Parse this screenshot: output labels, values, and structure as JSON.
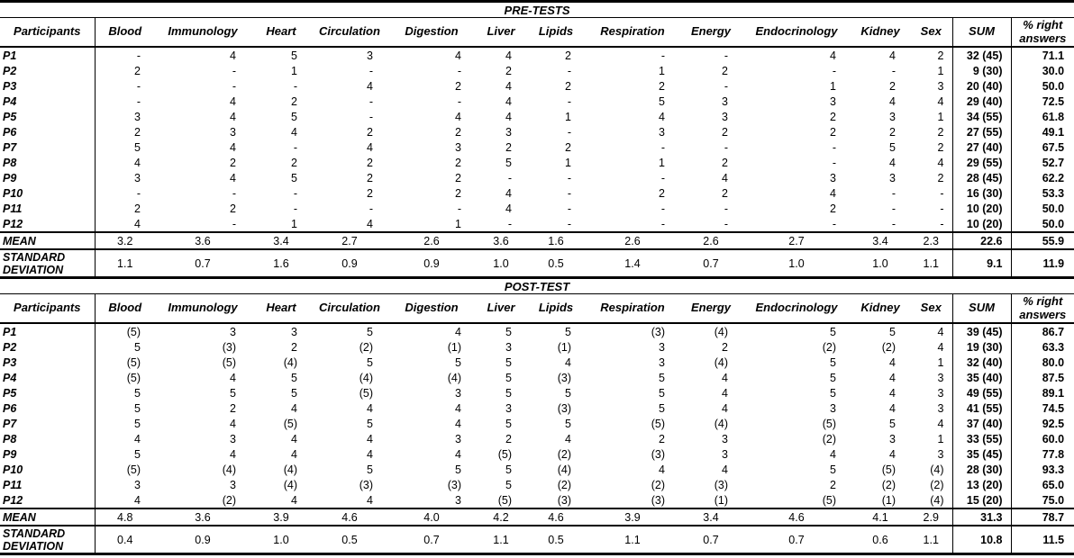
{
  "columns": [
    "Participants",
    "Blood",
    "Immunology",
    "Heart",
    "Circulation",
    "Digestion",
    "Liver",
    "Lipids",
    "Respiration",
    "Energy",
    "Endocrinology",
    "Kidney",
    "Sex",
    "SUM",
    "% right answers"
  ],
  "tables": [
    {
      "title": "PRE-TESTS",
      "rows": [
        {
          "label": "P1",
          "scores": [
            "-",
            "4",
            "5",
            "3",
            "4",
            "4",
            "2",
            "-",
            "-",
            "4",
            "4",
            "2"
          ],
          "sum": "32 (45)",
          "percent": "71.1"
        },
        {
          "label": "P2",
          "scores": [
            "2",
            "-",
            "1",
            "-",
            "-",
            "2",
            "-",
            "1",
            "2",
            "-",
            "-",
            "1"
          ],
          "sum": "9 (30)",
          "percent": "30.0"
        },
        {
          "label": "P3",
          "scores": [
            "-",
            "-",
            "-",
            "4",
            "2",
            "4",
            "2",
            "2",
            "-",
            "1",
            "2",
            "3"
          ],
          "sum": "20 (40)",
          "percent": "50.0"
        },
        {
          "label": "P4",
          "scores": [
            "-",
            "4",
            "2",
            "-",
            "-",
            "4",
            "-",
            "5",
            "3",
            "3",
            "4",
            "4"
          ],
          "sum": "29 (40)",
          "percent": "72.5"
        },
        {
          "label": "P5",
          "scores": [
            "3",
            "4",
            "5",
            "-",
            "4",
            "4",
            "1",
            "4",
            "3",
            "2",
            "3",
            "1"
          ],
          "sum": "34 (55)",
          "percent": "61.8"
        },
        {
          "label": "P6",
          "scores": [
            "2",
            "3",
            "4",
            "2",
            "2",
            "3",
            "-",
            "3",
            "2",
            "2",
            "2",
            "2"
          ],
          "sum": "27 (55)",
          "percent": "49.1"
        },
        {
          "label": "P7",
          "scores": [
            "5",
            "4",
            "-",
            "4",
            "3",
            "2",
            "2",
            "-",
            "-",
            "-",
            "5",
            "2"
          ],
          "sum": "27 (40)",
          "percent": "67.5"
        },
        {
          "label": "P8",
          "scores": [
            "4",
            "2",
            "2",
            "2",
            "2",
            "5",
            "1",
            "1",
            "2",
            "-",
            "4",
            "4"
          ],
          "sum": "29 (55)",
          "percent": "52.7"
        },
        {
          "label": "P9",
          "scores": [
            "3",
            "4",
            "5",
            "2",
            "2",
            "-",
            "-",
            "-",
            "4",
            "3",
            "3",
            "2"
          ],
          "sum": "28 (45)",
          "percent": "62.2"
        },
        {
          "label": "P10",
          "scores": [
            "-",
            "-",
            "-",
            "2",
            "2",
            "4",
            "-",
            "2",
            "2",
            "4",
            "-",
            "-"
          ],
          "sum": "16 (30)",
          "percent": "53.3"
        },
        {
          "label": "P11",
          "scores": [
            "2",
            "2",
            "-",
            "-",
            "-",
            "4",
            "-",
            "-",
            "-",
            "2",
            "-",
            "-"
          ],
          "sum": "10 (20)",
          "percent": "50.0"
        },
        {
          "label": "P12",
          "scores": [
            "4",
            "-",
            "1",
            "4",
            "1",
            "-",
            "-",
            "-",
            "-",
            "-",
            "-",
            "-"
          ],
          "sum": "10 (20)",
          "percent": "50.0"
        }
      ],
      "mean": {
        "label": "MEAN",
        "scores": [
          "3.2",
          "3.6",
          "3.4",
          "2.7",
          "2.6",
          "3.6",
          "1.6",
          "2.6",
          "2.6",
          "2.7",
          "3.4",
          "2.3"
        ],
        "sum": "22.6",
        "percent": "55.9"
      },
      "sd": {
        "label": "STANDARD DEVIATION",
        "scores": [
          "1.1",
          "0.7",
          "1.6",
          "0.9",
          "0.9",
          "1.0",
          "0.5",
          "1.4",
          "0.7",
          "1.0",
          "1.0",
          "1.1"
        ],
        "sum": "9.1",
        "percent": "11.9"
      }
    },
    {
      "title": "POST-TEST",
      "rows": [
        {
          "label": "P1",
          "scores": [
            "(5)",
            "3",
            "3",
            "5",
            "4",
            "5",
            "5",
            "(3)",
            "(4)",
            "5",
            "5",
            "4"
          ],
          "sum": "39 (45)",
          "percent": "86.7"
        },
        {
          "label": "P2",
          "scores": [
            "5",
            "(3)",
            "2",
            "(2)",
            "(1)",
            "3",
            "(1)",
            "3",
            "2",
            "(2)",
            "(2)",
            "4"
          ],
          "sum": "19 (30)",
          "percent": "63.3"
        },
        {
          "label": "P3",
          "scores": [
            "(5)",
            "(5)",
            "(4)",
            "5",
            "5",
            "5",
            "4",
            "3",
            "(4)",
            "5",
            "4",
            "1"
          ],
          "sum": "32 (40)",
          "percent": "80.0"
        },
        {
          "label": "P4",
          "scores": [
            "(5)",
            "4",
            "5",
            "(4)",
            "(4)",
            "5",
            "(3)",
            "5",
            "4",
            "5",
            "4",
            "3"
          ],
          "sum": "35 (40)",
          "percent": "87.5"
        },
        {
          "label": "P5",
          "scores": [
            "5",
            "5",
            "5",
            "(5)",
            "3",
            "5",
            "5",
            "5",
            "4",
            "5",
            "4",
            "3"
          ],
          "sum": "49 (55)",
          "percent": "89.1"
        },
        {
          "label": "P6",
          "scores": [
            "5",
            "2",
            "4",
            "4",
            "4",
            "3",
            "(3)",
            "5",
            "4",
            "3",
            "4",
            "3"
          ],
          "sum": "41 (55)",
          "percent": "74.5"
        },
        {
          "label": "P7",
          "scores": [
            "5",
            "4",
            "(5)",
            "5",
            "4",
            "5",
            "5",
            "(5)",
            "(4)",
            "(5)",
            "5",
            "4"
          ],
          "sum": "37 (40)",
          "percent": "92.5"
        },
        {
          "label": "P8",
          "scores": [
            "4",
            "3",
            "4",
            "4",
            "3",
            "2",
            "4",
            "2",
            "3",
            "(2)",
            "3",
            "1"
          ],
          "sum": "33 (55)",
          "percent": "60.0"
        },
        {
          "label": "P9",
          "scores": [
            "5",
            "4",
            "4",
            "4",
            "4",
            "(5)",
            "(2)",
            "(3)",
            "3",
            "4",
            "4",
            "3"
          ],
          "sum": "35 (45)",
          "percent": "77.8"
        },
        {
          "label": "P10",
          "scores": [
            "(5)",
            "(4)",
            "(4)",
            "5",
            "5",
            "5",
            "(4)",
            "4",
            "4",
            "5",
            "(5)",
            "(4)"
          ],
          "sum": "28 (30)",
          "percent": "93.3"
        },
        {
          "label": "P11",
          "scores": [
            "3",
            "3",
            "(4)",
            "(3)",
            "(3)",
            "5",
            "(2)",
            "(2)",
            "(3)",
            "2",
            "(2)",
            "(2)"
          ],
          "sum": "13 (20)",
          "percent": "65.0"
        },
        {
          "label": "P12",
          "scores": [
            "4",
            "(2)",
            "4",
            "4",
            "3",
            "(5)",
            "(3)",
            "(3)",
            "(1)",
            "(5)",
            "(1)",
            "(4)"
          ],
          "sum": "15 (20)",
          "percent": "75.0"
        }
      ],
      "mean": {
        "label": "MEAN",
        "scores": [
          "4.8",
          "3.6",
          "3.9",
          "4.6",
          "4.0",
          "4.2",
          "4.6",
          "3.9",
          "3.4",
          "4.6",
          "4.1",
          "2.9"
        ],
        "sum": "31.3",
        "percent": "78.7"
      },
      "sd": {
        "label": "STANDARD DEVIATION",
        "scores": [
          "0.4",
          "0.9",
          "1.0",
          "0.5",
          "0.7",
          "1.1",
          "0.5",
          "1.1",
          "0.7",
          "0.7",
          "0.6",
          "1.1"
        ],
        "sum": "10.8",
        "percent": "11.5"
      }
    }
  ]
}
